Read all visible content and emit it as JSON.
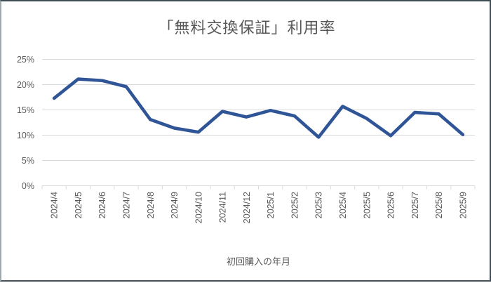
{
  "chart_data": {
    "type": "line",
    "title": "「無料交換保証」利用率",
    "xlabel": "初回購入の年月",
    "ylabel": "",
    "categories": [
      "2024/4",
      "2024/5",
      "2024/6",
      "2024/7",
      "2024/8",
      "2024/9",
      "2024/10",
      "2024/11",
      "2024/12",
      "2025/1",
      "2025/2",
      "2025/3",
      "2025/4",
      "2025/5",
      "2025/6",
      "2025/7",
      "2025/8",
      "2025/9"
    ],
    "values": [
      17.3,
      21.1,
      20.8,
      19.6,
      13.1,
      11.4,
      10.6,
      14.7,
      13.6,
      14.9,
      13.8,
      9.6,
      15.7,
      13.3,
      9.9,
      14.5,
      14.2,
      10.1
    ],
    "ylim": [
      0,
      25
    ],
    "yticks": [
      {
        "value": 0,
        "label": "0%"
      },
      {
        "value": 5,
        "label": "5%"
      },
      {
        "value": 10,
        "label": "10%"
      },
      {
        "value": 15,
        "label": "15%"
      },
      {
        "value": 20,
        "label": "20%"
      },
      {
        "value": 25,
        "label": "25%"
      }
    ],
    "grid": true,
    "legend": false,
    "line_color": "#2F5597",
    "grid_color": "#D9D9D9",
    "tick_label_color": "#595959",
    "title_color": "#565656"
  }
}
